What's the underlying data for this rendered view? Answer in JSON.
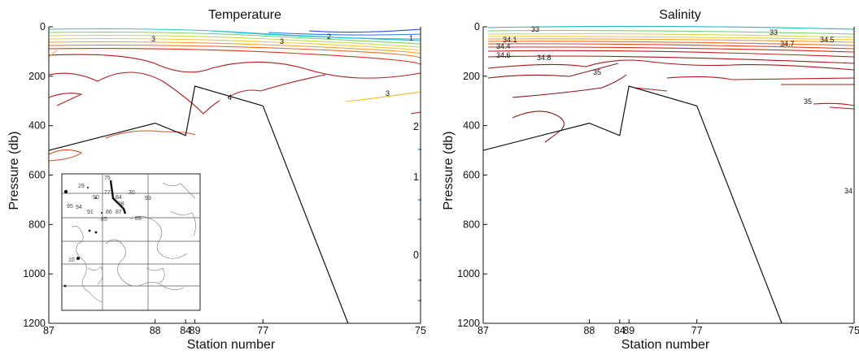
{
  "chart_data": [
    {
      "type": "contour",
      "title": "Temperature",
      "xlabel": "Station number",
      "ylabel": "Pressure (db)",
      "ylim": [
        0,
        1200
      ],
      "y_reversed": true,
      "yticks": [
        0,
        200,
        400,
        600,
        800,
        1000,
        1200
      ],
      "xticks": [
        "87",
        "88",
        "84",
        "89",
        "77",
        "75"
      ],
      "colorbar_labels": [
        "2",
        "1",
        "0"
      ],
      "bottom_profile": [
        {
          "station": "87",
          "pressure": 500
        },
        {
          "station": "88",
          "pressure": 390
        },
        {
          "station": "84",
          "pressure": 440
        },
        {
          "station": "89",
          "pressure": 240
        },
        {
          "station": "77",
          "pressure": 320
        },
        {
          "station": "",
          "pressure": 1200
        }
      ],
      "contour_labels": [
        "3",
        "3",
        "2",
        "1",
        "4",
        "3"
      ],
      "inset_map": {
        "station_labels": [
          "75",
          "29",
          "77",
          "30",
          "90",
          "84",
          "95",
          "94",
          "88",
          "93",
          "91",
          "86",
          "87",
          "85",
          "89",
          "10"
        ]
      }
    },
    {
      "type": "contour",
      "title": "Salinity",
      "xlabel": "Station number",
      "ylabel": "Pressure (db)",
      "ylim": [
        0,
        1200
      ],
      "y_reversed": true,
      "yticks": [
        0,
        200,
        400,
        600,
        800,
        1000,
        1200
      ],
      "xticks": [
        "87",
        "88",
        "84",
        "89",
        "77",
        "75"
      ],
      "bottom_profile": [
        {
          "station": "87",
          "pressure": 500
        },
        {
          "station": "88",
          "pressure": 390
        },
        {
          "station": "84",
          "pressure": 440
        },
        {
          "station": "89",
          "pressure": 240
        },
        {
          "station": "77",
          "pressure": 320
        },
        {
          "station": "",
          "pressure": 1200
        }
      ],
      "contour_labels": [
        "33",
        "33",
        "34.1",
        "34.4",
        "34.6",
        "34.5",
        "34.7",
        "34.8",
        "35",
        "35",
        "34"
      ]
    }
  ]
}
